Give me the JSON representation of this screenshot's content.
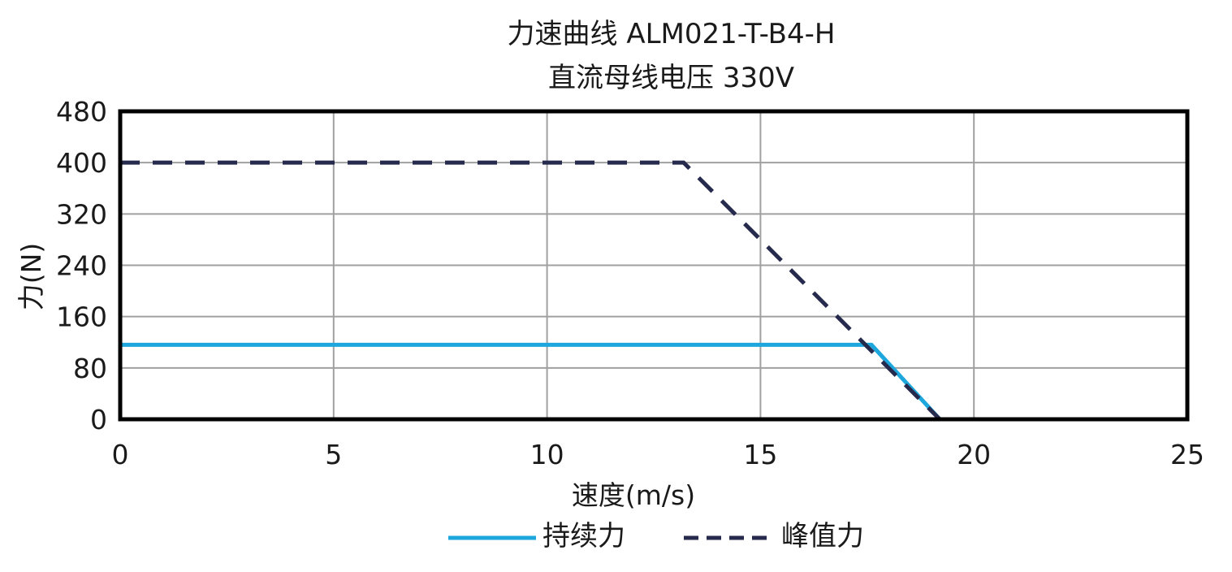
{
  "chart_data": {
    "type": "line",
    "title": "力速曲线 ALM021-T-B4-H",
    "subtitle": "直流母线电压 330V",
    "xlabel": "速度(m/s)",
    "ylabel": "力(N)",
    "xlim": [
      0,
      25
    ],
    "ylim": [
      0,
      480
    ],
    "xticks": [
      "0",
      "5",
      "10",
      "15",
      "20",
      "25"
    ],
    "yticks": [
      "0",
      "80",
      "160",
      "240",
      "320",
      "400",
      "480"
    ],
    "grid": true,
    "legend_position": "bottom",
    "series": [
      {
        "name": "持续力",
        "color": "#1ea7dc",
        "style": "solid",
        "x": [
          0,
          17.6,
          19.2
        ],
        "y": [
          116,
          116,
          0
        ]
      },
      {
        "name": "峰值力",
        "color": "#262a4d",
        "style": "dashed",
        "x": [
          0,
          13.2,
          19.2
        ],
        "y": [
          400,
          400,
          0
        ]
      }
    ]
  }
}
